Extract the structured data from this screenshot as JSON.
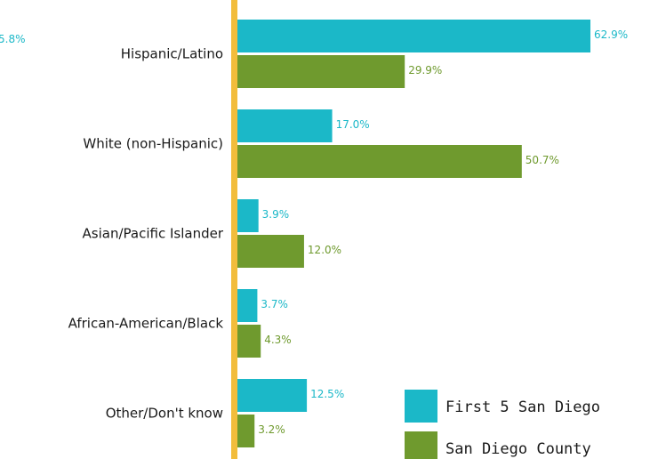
{
  "clipped_label": "5.8%",
  "colors": {
    "first5": "#1bb8c8",
    "county": "#6f9a2e",
    "axis": "#f2bd3c",
    "text": "#1a1a1a"
  },
  "legend": [
    {
      "label": "First 5 San Diego",
      "color": "#1bb8c8"
    },
    {
      "label": "San Diego County",
      "color": "#6f9a2e"
    }
  ],
  "chart_data": {
    "type": "bar",
    "orientation": "horizontal",
    "categories": [
      "Hispanic/Latino",
      "White (non-Hispanic)",
      "Asian/Pacific Islander",
      "African-American/Black",
      "Other/Don't know"
    ],
    "series": [
      {
        "name": "First 5 San Diego",
        "values": [
          62.9,
          17.0,
          3.9,
          3.7,
          12.5
        ],
        "labels": [
          "62.9%",
          "17.0%",
          "3.9%",
          "3.7%",
          "12.5%"
        ]
      },
      {
        "name": "San Diego County",
        "values": [
          29.9,
          50.7,
          12.0,
          4.3,
          3.2
        ],
        "labels": [
          "29.9%",
          "50.7%",
          "12.0%",
          "4.3%",
          "3.2%"
        ]
      }
    ],
    "xlim": [
      0,
      62.9
    ],
    "grid": false,
    "legend_position": "bottom-right"
  }
}
